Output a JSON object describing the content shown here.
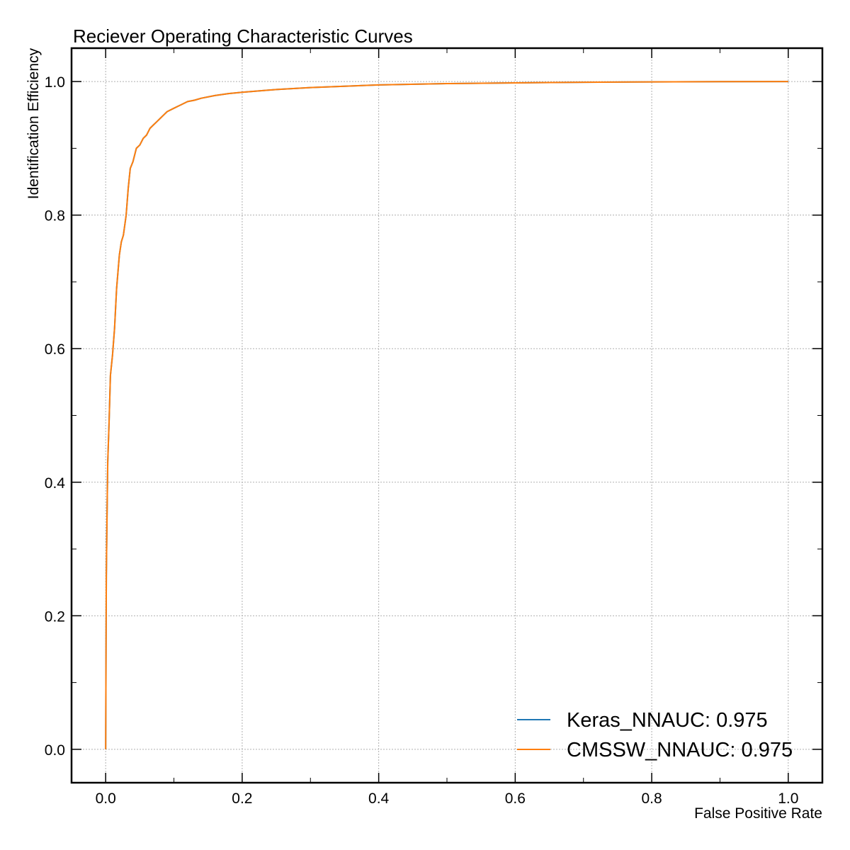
{
  "chart_data": {
    "type": "line",
    "title": "Reciever Operating Characteristic Curves",
    "xlabel": "False Positive Rate",
    "ylabel": "Identification Efficiency",
    "xlim": [
      -0.05,
      1.05
    ],
    "ylim": [
      -0.05,
      1.05
    ],
    "xticks": [
      0.0,
      0.2,
      0.4,
      0.6,
      0.8,
      1.0
    ],
    "xtick_labels": [
      "0.0",
      "0.2",
      "0.4",
      "0.6",
      "0.8",
      "1.0"
    ],
    "yticks": [
      0.0,
      0.2,
      0.4,
      0.6,
      0.8,
      1.0
    ],
    "ytick_labels": [
      "0.0",
      "0.2",
      "0.4",
      "0.6",
      "0.8",
      "1.0"
    ],
    "grid": true,
    "legend_position": "lower-right",
    "series": [
      {
        "name": "Keras_NNAUC: 0.975",
        "color": "#1f77b4",
        "x": [
          0.0,
          0.0005,
          0.001,
          0.002,
          0.003,
          0.005,
          0.007,
          0.01,
          0.013,
          0.016,
          0.02,
          0.023,
          0.026,
          0.03,
          0.033,
          0.036,
          0.04,
          0.045,
          0.05,
          0.055,
          0.06,
          0.065,
          0.07,
          0.075,
          0.08,
          0.085,
          0.09,
          0.1,
          0.11,
          0.12,
          0.13,
          0.14,
          0.16,
          0.18,
          0.2,
          0.25,
          0.3,
          0.35,
          0.4,
          0.5,
          0.6,
          0.7,
          0.8,
          0.9,
          1.0
        ],
        "y": [
          0.0,
          0.15,
          0.26,
          0.35,
          0.43,
          0.49,
          0.56,
          0.59,
          0.63,
          0.69,
          0.74,
          0.76,
          0.77,
          0.8,
          0.84,
          0.87,
          0.88,
          0.9,
          0.905,
          0.915,
          0.92,
          0.93,
          0.935,
          0.94,
          0.945,
          0.95,
          0.955,
          0.96,
          0.965,
          0.97,
          0.972,
          0.975,
          0.979,
          0.982,
          0.984,
          0.988,
          0.991,
          0.993,
          0.995,
          0.997,
          0.998,
          0.999,
          0.9995,
          0.9998,
          1.0
        ]
      },
      {
        "name": "CMSSW_NNAUC: 0.975",
        "color": "#ff7f0e",
        "x": [
          0.0,
          0.0005,
          0.001,
          0.002,
          0.003,
          0.005,
          0.007,
          0.01,
          0.013,
          0.016,
          0.02,
          0.023,
          0.026,
          0.03,
          0.033,
          0.036,
          0.04,
          0.045,
          0.05,
          0.055,
          0.06,
          0.065,
          0.07,
          0.075,
          0.08,
          0.085,
          0.09,
          0.1,
          0.11,
          0.12,
          0.13,
          0.14,
          0.16,
          0.18,
          0.2,
          0.25,
          0.3,
          0.35,
          0.4,
          0.5,
          0.6,
          0.7,
          0.8,
          0.9,
          1.0
        ],
        "y": [
          0.0,
          0.15,
          0.26,
          0.35,
          0.43,
          0.49,
          0.56,
          0.59,
          0.63,
          0.69,
          0.74,
          0.76,
          0.77,
          0.8,
          0.84,
          0.87,
          0.88,
          0.9,
          0.905,
          0.915,
          0.92,
          0.93,
          0.935,
          0.94,
          0.945,
          0.95,
          0.955,
          0.96,
          0.965,
          0.97,
          0.972,
          0.975,
          0.979,
          0.982,
          0.984,
          0.988,
          0.991,
          0.993,
          0.995,
          0.997,
          0.998,
          0.999,
          0.9995,
          0.9998,
          1.0
        ]
      }
    ]
  }
}
